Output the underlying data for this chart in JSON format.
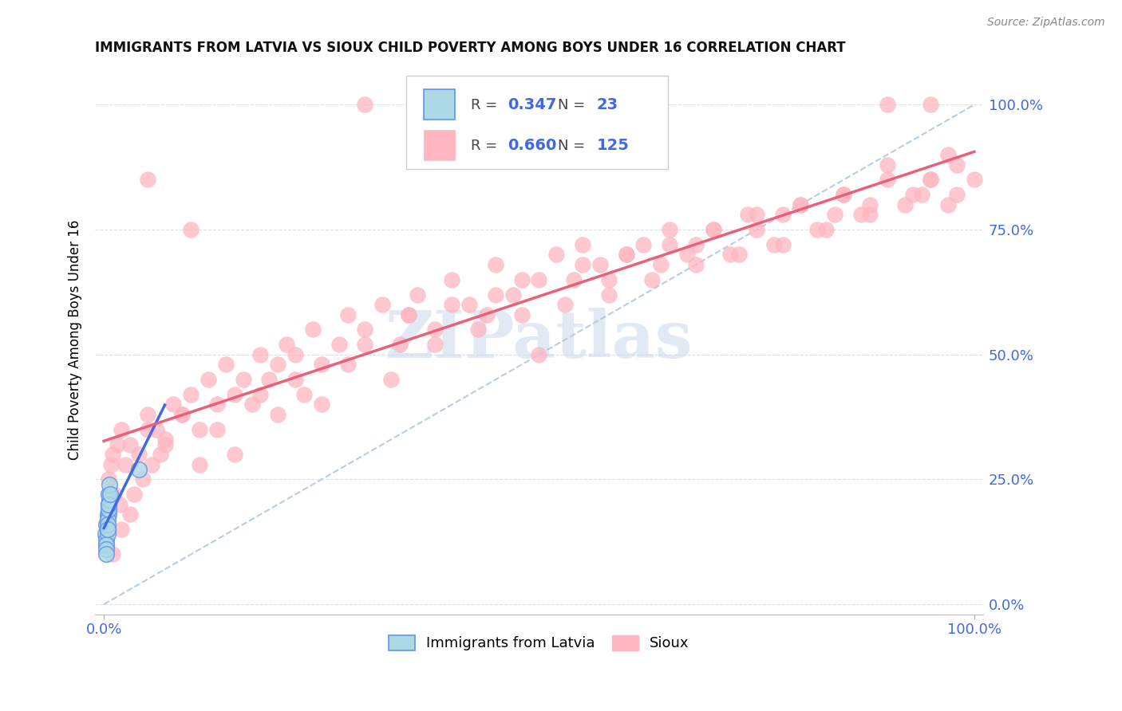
{
  "title": "IMMIGRANTS FROM LATVIA VS SIOUX CHILD POVERTY AMONG BOYS UNDER 16 CORRELATION CHART",
  "source": "Source: ZipAtlas.com",
  "ylabel": "Child Poverty Among Boys Under 16",
  "R_latvia": 0.347,
  "N_latvia": 23,
  "R_sioux": 0.66,
  "N_sioux": 125,
  "color_latvia_fill": "#ADD8E6",
  "color_latvia_edge": "#6495ED",
  "color_sioux_fill": "#FFB6C1",
  "color_sioux_edge": "#FFB6C1",
  "color_latvia_line": "#4169E1",
  "color_sioux_line": "#E8607A",
  "color_diagonal": "#B0C8E0",
  "color_grid": "#E0E0E0",
  "color_axis_val": "#4169E1",
  "watermark_text": "ZIPatlas",
  "watermark_color": "#C8D8EC",
  "background": "#FFFFFF",
  "ytick_vals": [
    0.0,
    0.25,
    0.5,
    0.75,
    1.0
  ],
  "ytick_labels": [
    "0.0%",
    "25.0%",
    "50.0%",
    "75.0%",
    "100.0%"
  ],
  "sioux_x": [
    0.005,
    0.008,
    0.01,
    0.012,
    0.015,
    0.018,
    0.02,
    0.025,
    0.03,
    0.035,
    0.04,
    0.045,
    0.05,
    0.055,
    0.06,
    0.065,
    0.07,
    0.08,
    0.09,
    0.1,
    0.11,
    0.12,
    0.13,
    0.14,
    0.15,
    0.16,
    0.17,
    0.18,
    0.19,
    0.2,
    0.21,
    0.22,
    0.23,
    0.24,
    0.25,
    0.27,
    0.28,
    0.3,
    0.32,
    0.34,
    0.35,
    0.36,
    0.38,
    0.4,
    0.42,
    0.44,
    0.45,
    0.47,
    0.48,
    0.5,
    0.52,
    0.54,
    0.55,
    0.57,
    0.58,
    0.6,
    0.62,
    0.64,
    0.65,
    0.67,
    0.68,
    0.7,
    0.72,
    0.74,
    0.75,
    0.77,
    0.78,
    0.8,
    0.82,
    0.84,
    0.85,
    0.87,
    0.88,
    0.9,
    0.92,
    0.94,
    0.95,
    0.97,
    0.98,
    1.0,
    0.01,
    0.02,
    0.03,
    0.05,
    0.07,
    0.09,
    0.11,
    0.13,
    0.15,
    0.18,
    0.2,
    0.22,
    0.25,
    0.28,
    0.3,
    0.33,
    0.35,
    0.38,
    0.4,
    0.43,
    0.45,
    0.48,
    0.5,
    0.53,
    0.55,
    0.58,
    0.6,
    0.63,
    0.65,
    0.68,
    0.7,
    0.73,
    0.75,
    0.78,
    0.8,
    0.83,
    0.85,
    0.88,
    0.9,
    0.93,
    0.95,
    0.97,
    0.3,
    0.05,
    0.1,
    0.95,
    0.98,
    0.9
  ],
  "sioux_y": [
    0.25,
    0.28,
    0.3,
    0.22,
    0.32,
    0.2,
    0.35,
    0.28,
    0.32,
    0.22,
    0.3,
    0.25,
    0.38,
    0.28,
    0.35,
    0.3,
    0.33,
    0.4,
    0.38,
    0.42,
    0.35,
    0.45,
    0.4,
    0.48,
    0.42,
    0.45,
    0.4,
    0.5,
    0.45,
    0.48,
    0.52,
    0.5,
    0.42,
    0.55,
    0.48,
    0.52,
    0.58,
    0.55,
    0.6,
    0.52,
    0.58,
    0.62,
    0.55,
    0.65,
    0.6,
    0.58,
    0.68,
    0.62,
    0.65,
    0.5,
    0.7,
    0.65,
    0.72,
    0.68,
    0.65,
    0.7,
    0.72,
    0.68,
    0.75,
    0.7,
    0.72,
    0.75,
    0.7,
    0.78,
    0.75,
    0.72,
    0.78,
    0.8,
    0.75,
    0.78,
    0.82,
    0.78,
    0.8,
    0.85,
    0.8,
    0.82,
    0.85,
    0.8,
    0.88,
    0.85,
    0.1,
    0.15,
    0.18,
    0.35,
    0.32,
    0.38,
    0.28,
    0.35,
    0.3,
    0.42,
    0.38,
    0.45,
    0.4,
    0.48,
    0.52,
    0.45,
    0.58,
    0.52,
    0.6,
    0.55,
    0.62,
    0.58,
    0.65,
    0.6,
    0.68,
    0.62,
    0.7,
    0.65,
    0.72,
    0.68,
    0.75,
    0.7,
    0.78,
    0.72,
    0.8,
    0.75,
    0.82,
    0.78,
    0.88,
    0.82,
    0.85,
    0.9,
    1.0,
    0.85,
    0.75,
    1.0,
    0.82,
    1.0
  ],
  "latvia_x": [
    0.002,
    0.003,
    0.004,
    0.003,
    0.005,
    0.004,
    0.006,
    0.005,
    0.003,
    0.004,
    0.005,
    0.006,
    0.004,
    0.003,
    0.005,
    0.004,
    0.006,
    0.005,
    0.003,
    0.007,
    0.004,
    0.003,
    0.04
  ],
  "latvia_y": [
    0.14,
    0.16,
    0.18,
    0.12,
    0.2,
    0.15,
    0.22,
    0.18,
    0.13,
    0.17,
    0.19,
    0.21,
    0.14,
    0.12,
    0.22,
    0.16,
    0.24,
    0.2,
    0.11,
    0.22,
    0.15,
    0.1,
    0.27
  ]
}
